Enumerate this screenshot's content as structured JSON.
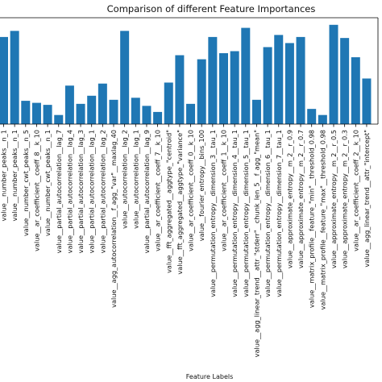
{
  "chart_data": {
    "type": "bar",
    "title": "Comparison of different Feature Importances",
    "xlabel": "Feature Labels",
    "ylabel": "",
    "ylim": [
      0,
      1.05
    ],
    "colors": {
      "bar": "#1f77b4"
    },
    "categories": [
      "value__number_peaks__n_1",
      "value__number_peaks__n_1",
      "value__number_cwt_peaks__n_5",
      "value__ar_coefficient__coeff_8__k_10",
      "value__number_cwt_peaks__n_1",
      "value__partial_autocorrelation__lag_7",
      "value__partial_autocorrelation__lag_4",
      "value__partial_autocorrelation__lag_3",
      "value__partial_autocorrelation__lag_1",
      "value__partial_autocorrelation__lag_2",
      "value__agg_autocorrelation__f_agg_\"var\"__maxlag_40",
      "value__autocorrelation__lag_2",
      "value__autocorrelation__lag_1",
      "value__partial_autocorrelation__lag_9",
      "value__ar_coefficient__coeff_7__k_10",
      "value__fft_aggregated__aggtype_\"centroid\"",
      "value__fft_aggregated__aggtype_\"variance\"",
      "value__ar_coefficient__coeff_0__k_10",
      "value__fourier_entropy__bins_100",
      "value__permutation_entropy__dimension_3__tau_1",
      "value__ar_coefficient__coeff_1__k_10",
      "value__permutation_entropy__dimension_4__tau_1",
      "value__permutation_entropy__dimension_5__tau_1",
      "value__agg_linear_trend__attr_\"stderr\"__chunk_len_5__f_agg_\"mean\"",
      "value__permutation_entropy__dimension_6__tau_1",
      "value__permutation_entropy__dimension_7__tau_1",
      "value__approximate_entropy__m_2__r_0.9",
      "value__approximate_entropy__m_2__r_0.7",
      "value__matrix_profile__feature_\"min\"__threshold_0.98",
      "value__matrix_profile__feature_\"max\"__threshold_0.98",
      "value__approximate_entropy__m_2__r_0.5",
      "value__approximate_entropy__m_2__r_0.3",
      "value__ar_coefficient__coeff_2__k_10",
      "value__agg_linear_trend__attr_\"intercept\""
    ],
    "values": [
      0.86,
      0.92,
      0.23,
      0.21,
      0.19,
      0.09,
      0.38,
      0.2,
      0.28,
      0.4,
      0.24,
      0.92,
      0.26,
      0.18,
      0.12,
      0.41,
      0.68,
      0.2,
      0.64,
      0.86,
      0.7,
      0.72,
      0.95,
      0.24,
      0.76,
      0.88,
      0.8,
      0.86,
      0.15,
      0.09,
      0.98,
      0.85,
      0.66,
      0.45
    ]
  }
}
